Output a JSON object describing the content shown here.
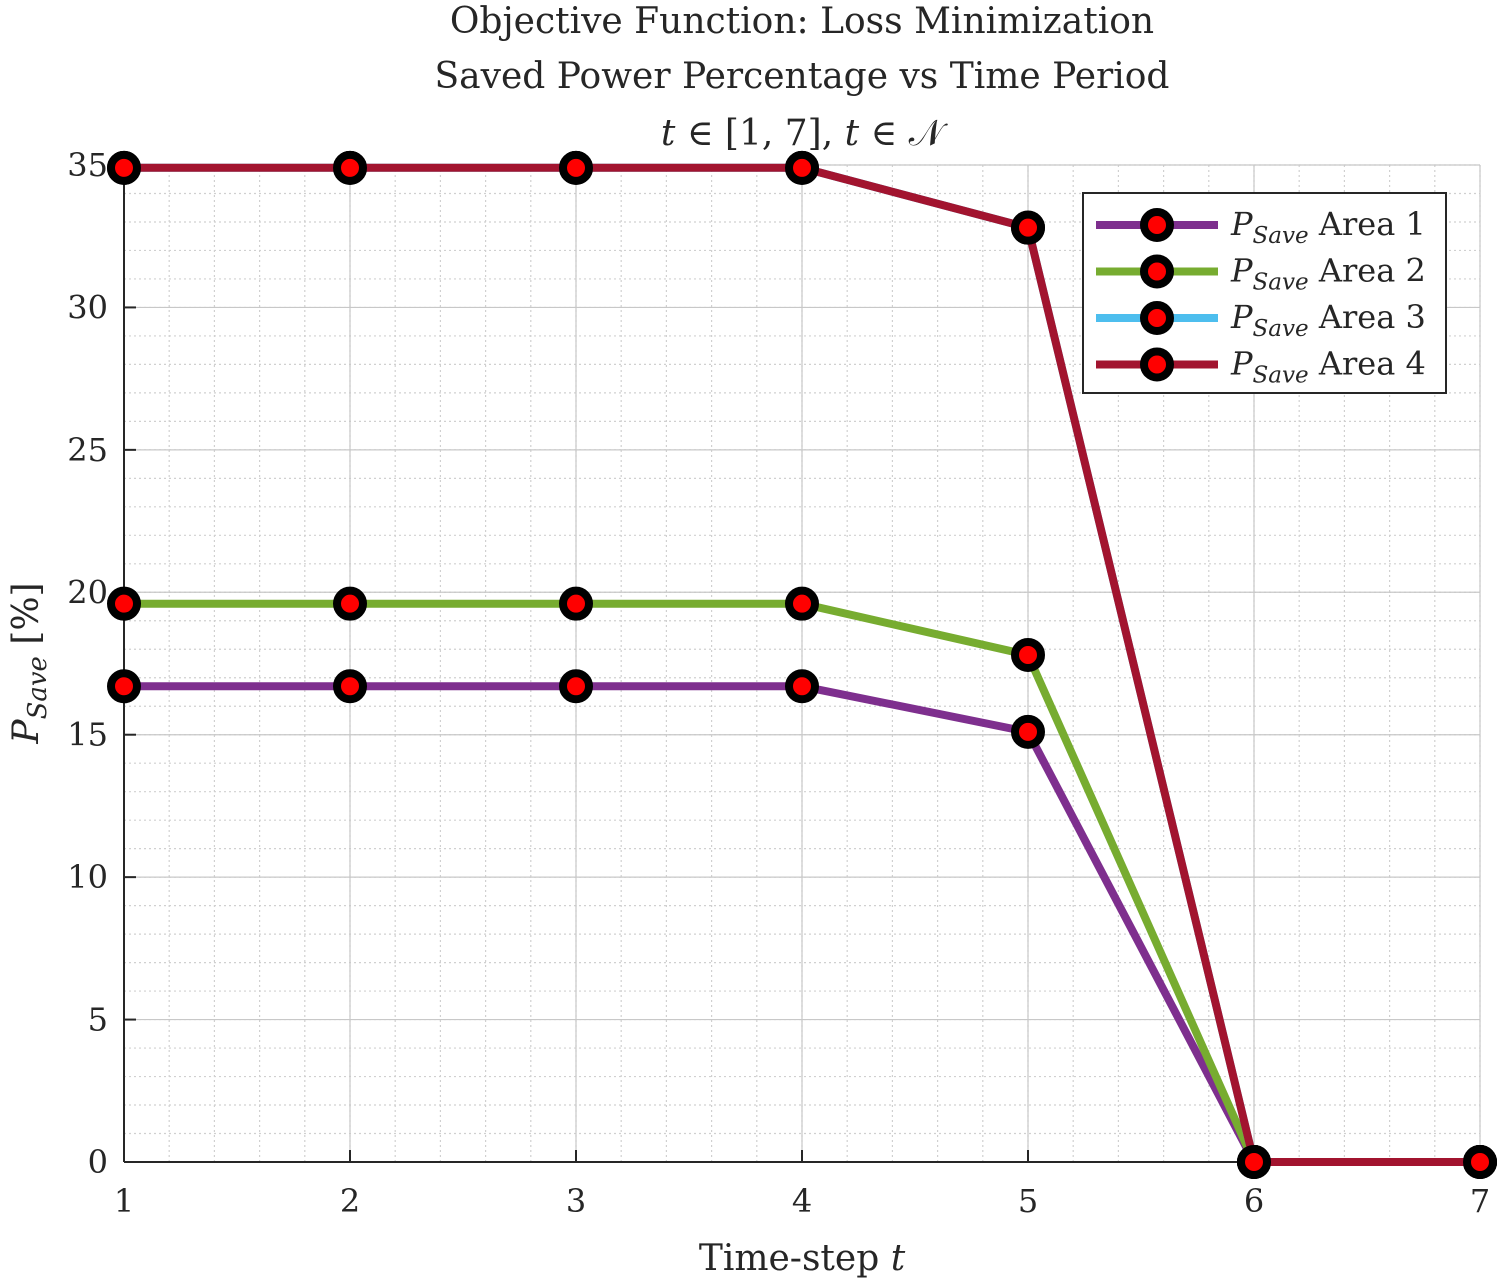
{
  "chart_data": {
    "type": "line",
    "title": [
      "Objective Function: Loss Minimization",
      "Saved Power Percentage vs Time Period",
      "t ∈ [1, 7], t ∈ 𝒩"
    ],
    "xlabel": "Time-step t",
    "ylabel": "P_Save [%]",
    "xlim": [
      1,
      7
    ],
    "ylim": [
      0,
      35
    ],
    "xticks": [
      1,
      2,
      3,
      4,
      5,
      6,
      7
    ],
    "yticks": [
      0,
      5,
      10,
      15,
      20,
      25,
      30,
      35
    ],
    "grid": true,
    "minor_grid": true,
    "legend_position": "top-right",
    "marker": {
      "edge_color": "#000000",
      "face_color": "#ff0000"
    },
    "x": [
      1,
      2,
      3,
      4,
      5,
      6,
      7
    ],
    "series": [
      {
        "name": "P_Save Area 1",
        "color": "#7e2f8e",
        "values": [
          16.7,
          16.7,
          16.7,
          16.7,
          15.1,
          0,
          0
        ]
      },
      {
        "name": "P_Save Area 2",
        "color": "#77ac30",
        "values": [
          19.6,
          19.6,
          19.6,
          19.6,
          17.8,
          0,
          0
        ]
      },
      {
        "name": "P_Save Area 3",
        "color": "#4dbeee",
        "values": [
          34.9,
          34.9,
          34.9,
          34.9,
          32.8,
          0,
          0
        ]
      },
      {
        "name": "P_Save Area 4",
        "color": "#a2142f",
        "values": [
          34.9,
          34.9,
          34.9,
          34.9,
          32.8,
          0,
          0
        ]
      }
    ]
  }
}
